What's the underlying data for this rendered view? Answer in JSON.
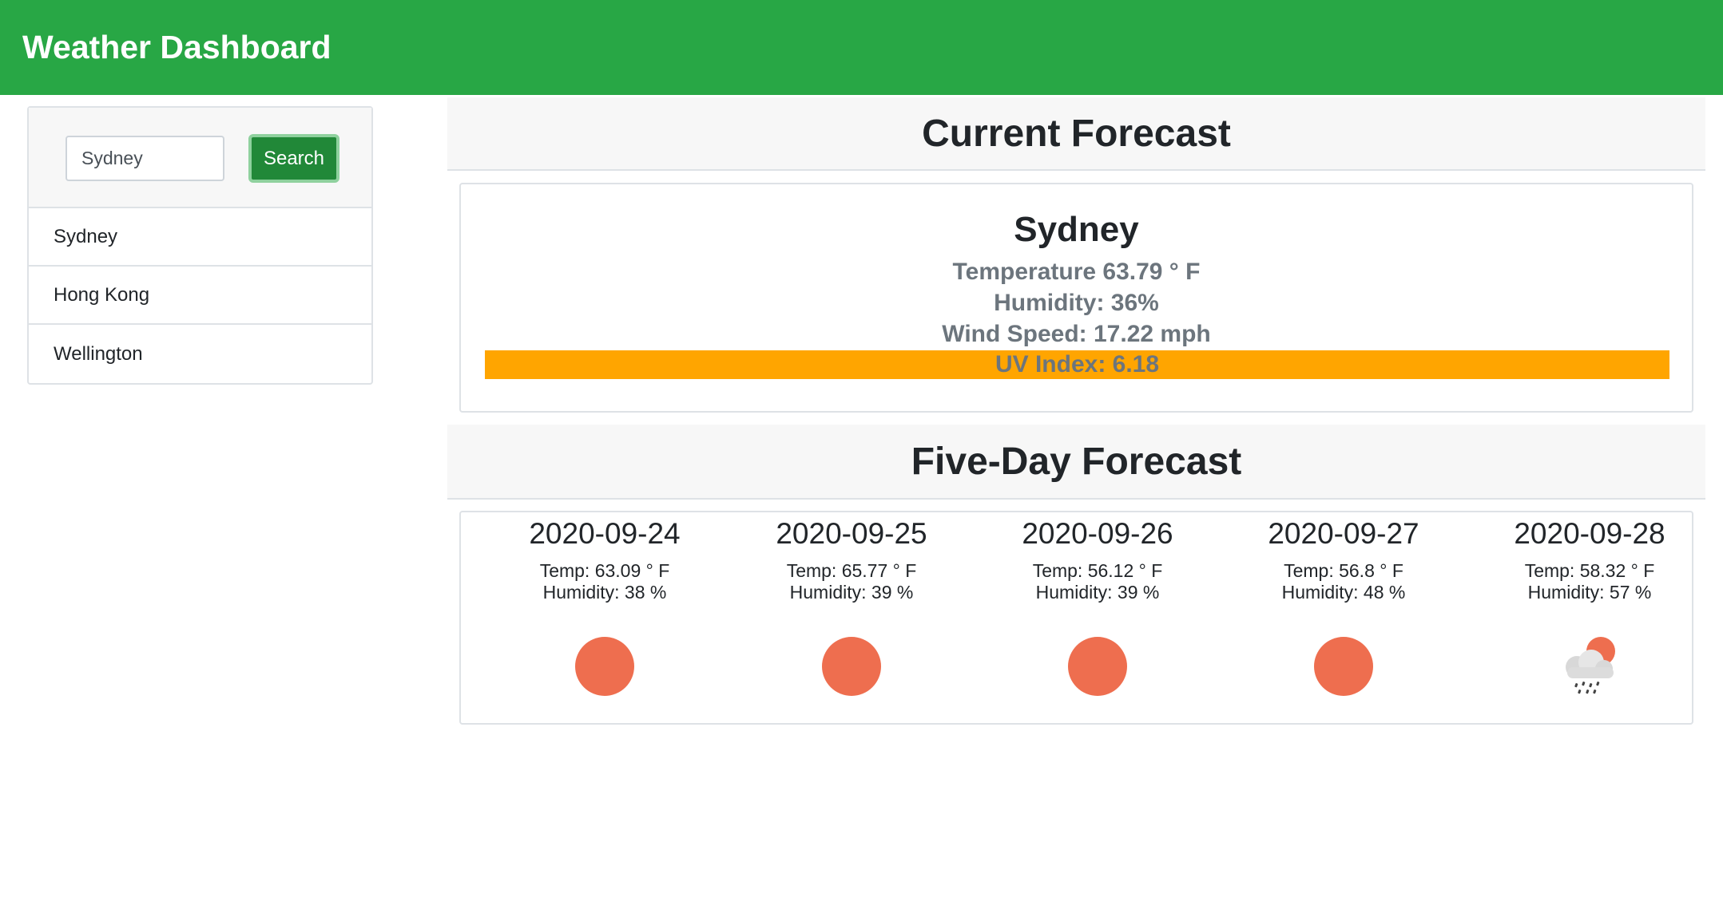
{
  "navbar": {
    "title": "Weather Dashboard"
  },
  "sidebar": {
    "search_value": "Sydney",
    "search_button": "Search",
    "history": [
      "Sydney",
      "Hong Kong",
      "Wellington"
    ]
  },
  "current": {
    "header": "Current Forecast",
    "city": "Sydney",
    "temperature": "Temperature 63.79 ° F",
    "humidity": "Humidity: 36%",
    "wind": "Wind Speed: 17.22 mph",
    "uv": "UV Index: 6.18",
    "uv_color": "#ffa500"
  },
  "five_day": {
    "header": "Five-Day Forecast",
    "days": [
      {
        "date": "2020-09-24",
        "temp": "Temp: 63.09 ° F",
        "humidity": "Humidity: 38 %",
        "icon": "sun-icon"
      },
      {
        "date": "2020-09-25",
        "temp": "Temp: 65.77 ° F",
        "humidity": "Humidity: 39 %",
        "icon": "sun-icon"
      },
      {
        "date": "2020-09-26",
        "temp": "Temp: 56.12 ° F",
        "humidity": "Humidity: 39 %",
        "icon": "sun-icon"
      },
      {
        "date": "2020-09-27",
        "temp": "Temp: 56.8 ° F",
        "humidity": "Humidity: 48 %",
        "icon": "sun-icon"
      },
      {
        "date": "2020-09-28",
        "temp": "Temp: 58.32 ° F",
        "humidity": "Humidity: 57 %",
        "icon": "rain-sun-icon"
      }
    ]
  },
  "colors": {
    "navbar": "#28a745",
    "search_button": "#218838",
    "sun": "#ee6e4f"
  }
}
